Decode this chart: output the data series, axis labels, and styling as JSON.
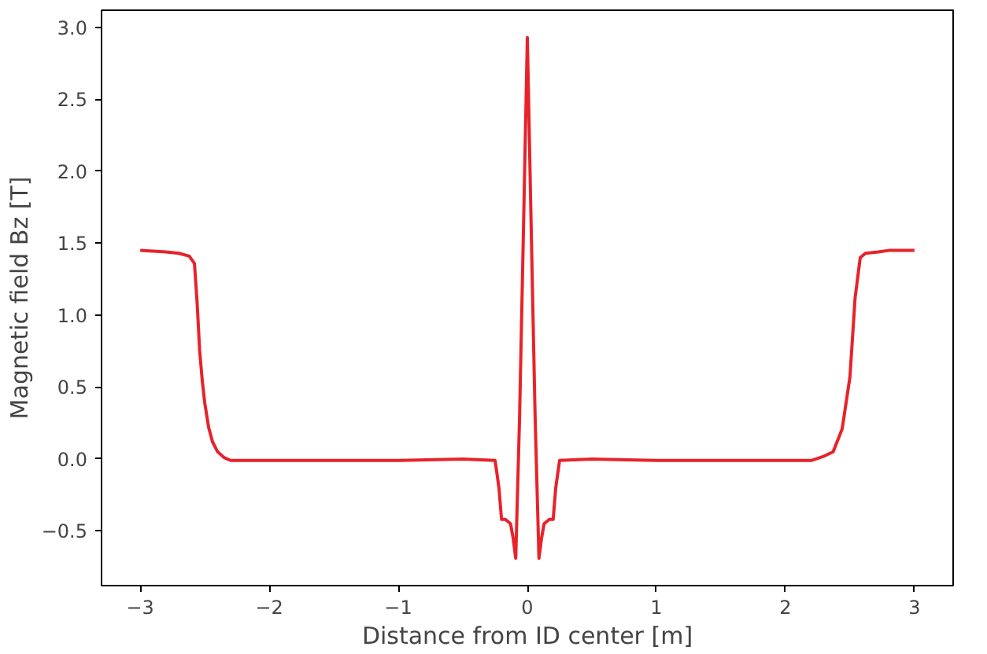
{
  "chart_data": {
    "type": "line",
    "xlabel": "Distance from ID center [m]",
    "ylabel": "Magnetic field Bz [T]",
    "xlim": [
      -3.3,
      3.3
    ],
    "ylim": [
      -0.88,
      3.12
    ],
    "xticks": [
      {
        "value": -3,
        "label": "−3"
      },
      {
        "value": -2,
        "label": "−2"
      },
      {
        "value": -1,
        "label": "−1"
      },
      0,
      1,
      2,
      3
    ],
    "yticks": [
      {
        "value": -0.5,
        "label": "−0.5"
      },
      {
        "value": 0,
        "label": "0.0"
      },
      0.5,
      {
        "value": 1,
        "label": "1.0"
      },
      1.5,
      {
        "value": 2,
        "label": "2.0"
      },
      2.5,
      {
        "value": 3,
        "label": "3.0"
      }
    ],
    "grid": false,
    "series": [
      {
        "color": "#e8222a",
        "x": [
          -3.0,
          -2.8,
          -2.7,
          -2.62,
          -2.58,
          -2.56,
          -2.54,
          -2.52,
          -2.5,
          -2.47,
          -2.44,
          -2.4,
          -2.35,
          -2.3,
          -2.2,
          -1.5,
          -1.0,
          -0.5,
          -0.25,
          -0.22,
          -0.2,
          -0.17,
          -0.13,
          -0.11,
          -0.09,
          -0.06,
          -0.03,
          0.0,
          0.03,
          0.06,
          0.09,
          0.11,
          0.13,
          0.17,
          0.2,
          0.22,
          0.25,
          0.5,
          1.0,
          1.5,
          2.2,
          2.3,
          2.37,
          2.44,
          2.5,
          2.54,
          2.58,
          2.62,
          2.72,
          2.8,
          3.0
        ],
        "values": [
          1.45,
          1.44,
          1.43,
          1.41,
          1.36,
          1.1,
          0.76,
          0.55,
          0.39,
          0.22,
          0.12,
          0.05,
          0.01,
          -0.01,
          -0.01,
          -0.01,
          -0.01,
          0.0,
          -0.01,
          -0.2,
          -0.42,
          -0.42,
          -0.45,
          -0.55,
          -0.69,
          0.3,
          1.6,
          2.93,
          1.6,
          0.3,
          -0.69,
          -0.55,
          -0.45,
          -0.42,
          -0.42,
          -0.2,
          -0.01,
          0.0,
          -0.01,
          -0.01,
          -0.01,
          0.02,
          0.05,
          0.21,
          0.57,
          1.12,
          1.4,
          1.43,
          1.44,
          1.45,
          1.45
        ]
      }
    ]
  }
}
